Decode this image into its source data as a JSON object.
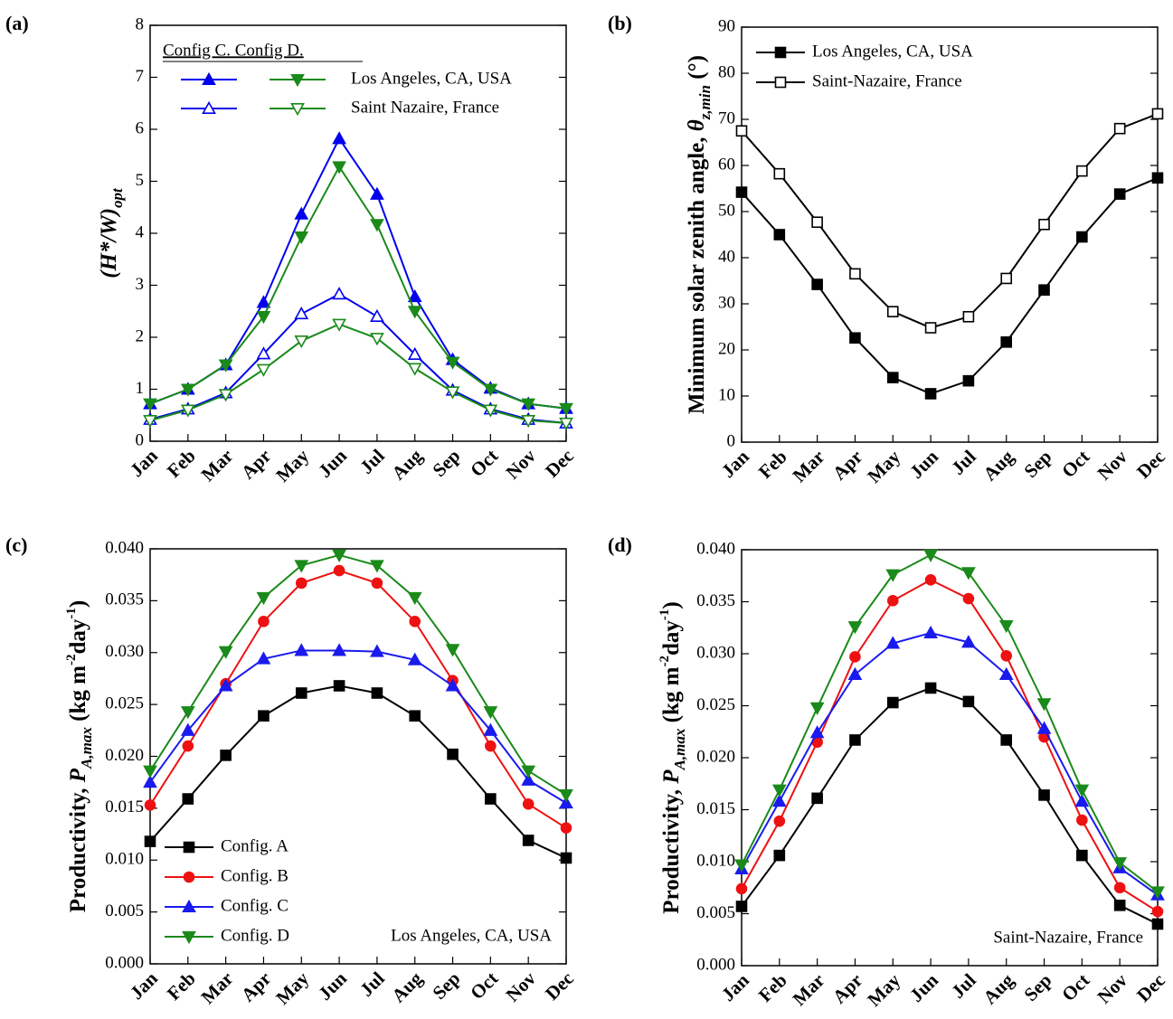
{
  "chart_data": [
    {
      "type": "line",
      "panel_label": "(a)",
      "ylabel": [
        {
          "text": "(H*/W)",
          "style": "italic"
        },
        {
          "text": "opt",
          "style": "italic",
          "shift": "sub"
        }
      ],
      "categories": [
        "Jan",
        "Feb",
        "Mar",
        "Apr",
        "May",
        "Jun",
        "Jul",
        "Aug",
        "Sep",
        "Oct",
        "Nov",
        "Dec"
      ],
      "ylim": [
        0,
        8
      ],
      "yticks": [
        0,
        1,
        2,
        3,
        4,
        5,
        6,
        7,
        8
      ],
      "legend_title": "Config C. Config D.",
      "groups": [
        {
          "name": "Los Angeles, CA, USA",
          "series": [
            {
              "color": "#0000ee",
              "marker": "triangle-up",
              "filled": true,
              "values": [
                0.72,
                1.0,
                1.47,
                2.67,
                4.37,
                5.82,
                4.75,
                2.78,
                1.57,
                1.02,
                0.72,
                0.63
              ]
            },
            {
              "color": "#1a8a1a",
              "marker": "triangle-down",
              "filled": true,
              "values": [
                0.72,
                1.0,
                1.47,
                2.4,
                3.93,
                5.28,
                4.17,
                2.5,
                1.52,
                1.0,
                0.72,
                0.63
              ]
            }
          ]
        },
        {
          "name": "Saint Nazaire, France",
          "series": [
            {
              "color": "#0000ee",
              "marker": "triangle-up",
              "filled": false,
              "values": [
                0.42,
                0.62,
                0.93,
                1.68,
                2.45,
                2.83,
                2.4,
                1.67,
                0.98,
                0.62,
                0.42,
                0.35
              ]
            },
            {
              "color": "#1a8a1a",
              "marker": "triangle-down",
              "filled": false,
              "values": [
                0.4,
                0.6,
                0.9,
                1.38,
                1.93,
                2.25,
                1.98,
                1.4,
                0.95,
                0.6,
                0.4,
                0.35
              ]
            }
          ]
        }
      ]
    },
    {
      "type": "line",
      "panel_label": "(b)",
      "ylabel": [
        {
          "text": "Minimum solar zenith angle, "
        },
        {
          "text": "θ",
          "style": "italic"
        },
        {
          "text": "z,min",
          "style": "italic",
          "shift": "sub"
        },
        {
          "text": " (°)"
        }
      ],
      "categories": [
        "Jan",
        "Feb",
        "Mar",
        "Apr",
        "May",
        "Jun",
        "Jul",
        "Aug",
        "Sep",
        "Oct",
        "Nov",
        "Dec"
      ],
      "ylim": [
        0,
        90
      ],
      "yticks": [
        0,
        10,
        20,
        30,
        40,
        50,
        60,
        70,
        80,
        90
      ],
      "legend": "upper left",
      "series": [
        {
          "name": "Los Angeles, CA, USA",
          "color": "#000000",
          "marker": "square",
          "filled": true,
          "values": [
            54.2,
            45,
            34.2,
            22.6,
            14,
            10.5,
            13.3,
            21.7,
            33,
            44.5,
            53.8,
            57.3
          ]
        },
        {
          "name": "Saint-Nazaire, France",
          "color": "#000000",
          "marker": "square",
          "filled": false,
          "values": [
            67.5,
            58.2,
            47.7,
            36.5,
            28.3,
            24.8,
            27.2,
            35.5,
            47.2,
            58.8,
            68,
            71.2
          ]
        }
      ]
    },
    {
      "type": "line",
      "panel_label": "(c)",
      "ylabel": [
        {
          "text": "Productivity, "
        },
        {
          "text": "P",
          "style": "italic"
        },
        {
          "text": "A,max",
          "style": "italic",
          "shift": "sub"
        },
        {
          "text": " (kg m"
        },
        {
          "text": "-2",
          "shift": "sup"
        },
        {
          "text": "day"
        },
        {
          "text": "-1",
          "shift": "sup"
        },
        {
          "text": ")"
        }
      ],
      "categories": [
        "Jan",
        "Feb",
        "Mar",
        "Apr",
        "May",
        "Jun",
        "Jul",
        "Aug",
        "Sep",
        "Oct",
        "Nov",
        "Dec"
      ],
      "ylim": [
        0,
        0.04
      ],
      "yticks": [
        {
          "value": 0,
          "label": "0.000"
        },
        {
          "value": 0.005,
          "label": "0.005"
        },
        {
          "value": 0.01,
          "label": "0.010"
        },
        {
          "value": 0.015,
          "label": "0.015"
        },
        {
          "value": 0.02,
          "label": "0.020"
        },
        {
          "value": 0.025,
          "label": "0.025"
        },
        {
          "value": 0.03,
          "label": "0.030"
        },
        {
          "value": 0.035,
          "label": "0.035"
        },
        {
          "value": 0.04,
          "label": "0.040"
        }
      ],
      "legend": "lower left",
      "annotation": "Los Angeles, CA, USA",
      "series": [
        {
          "name": "Config. A",
          "color": "#000000",
          "marker": "square",
          "filled": true,
          "values": [
            0.0118,
            0.0159,
            0.0201,
            0.0239,
            0.0261,
            0.0268,
            0.0261,
            0.0239,
            0.0202,
            0.0159,
            0.0119,
            0.0102
          ]
        },
        {
          "name": "Config. B",
          "color": "#ee1111",
          "marker": "circle",
          "filled": true,
          "values": [
            0.0153,
            0.021,
            0.027,
            0.033,
            0.0367,
            0.0379,
            0.0367,
            0.033,
            0.0273,
            0.021,
            0.0154,
            0.0131
          ]
        },
        {
          "name": "Config. C",
          "color": "#1a1aee",
          "marker": "triangle-up",
          "filled": true,
          "values": [
            0.0175,
            0.0225,
            0.0268,
            0.0294,
            0.0302,
            0.0302,
            0.0301,
            0.0293,
            0.0268,
            0.0225,
            0.0177,
            0.0155
          ]
        },
        {
          "name": "Config. D",
          "color": "#1a8a1a",
          "marker": "triangle-down",
          "filled": true,
          "values": [
            0.0186,
            0.0243,
            0.0301,
            0.0353,
            0.0384,
            0.0394,
            0.0384,
            0.0353,
            0.0303,
            0.0243,
            0.0186,
            0.0163
          ]
        }
      ]
    },
    {
      "type": "line",
      "panel_label": "(d)",
      "ylabel": [
        {
          "text": "Productivity, "
        },
        {
          "text": "P",
          "style": "italic"
        },
        {
          "text": "A,max",
          "style": "italic",
          "shift": "sub"
        },
        {
          "text": " (kg m"
        },
        {
          "text": "-2",
          "shift": "sup"
        },
        {
          "text": "day"
        },
        {
          "text": "-1",
          "shift": "sup"
        },
        {
          "text": ")"
        }
      ],
      "categories": [
        "Jan",
        "Feb",
        "Mar",
        "Apr",
        "May",
        "Jun",
        "Jul",
        "Aug",
        "Sep",
        "Oct",
        "Nov",
        "Dec"
      ],
      "ylim": [
        0,
        0.04
      ],
      "yticks": [
        {
          "value": 0,
          "label": "0.000"
        },
        {
          "value": 0.005,
          "label": "0.005"
        },
        {
          "value": 0.01,
          "label": "0.010"
        },
        {
          "value": 0.015,
          "label": "0.015"
        },
        {
          "value": 0.02,
          "label": "0.020"
        },
        {
          "value": 0.025,
          "label": "0.025"
        },
        {
          "value": 0.03,
          "label": "0.030"
        },
        {
          "value": 0.035,
          "label": "0.035"
        },
        {
          "value": 0.04,
          "label": "0.040"
        }
      ],
      "annotation": "Saint-Nazaire, France",
      "series": [
        {
          "color": "#000000",
          "marker": "square",
          "filled": true,
          "values": [
            0.0057,
            0.0106,
            0.0161,
            0.0217,
            0.0253,
            0.0267,
            0.0254,
            0.0217,
            0.0164,
            0.0106,
            0.0058,
            0.004
          ]
        },
        {
          "color": "#ee1111",
          "marker": "circle",
          "filled": true,
          "values": [
            0.0074,
            0.0139,
            0.0215,
            0.0297,
            0.0351,
            0.0371,
            0.0353,
            0.0298,
            0.022,
            0.014,
            0.0075,
            0.0052
          ]
        },
        {
          "color": "#1a1aee",
          "marker": "triangle-up",
          "filled": true,
          "values": [
            0.0093,
            0.0158,
            0.0224,
            0.028,
            0.031,
            0.032,
            0.0311,
            0.028,
            0.0228,
            0.0158,
            0.0094,
            0.0068
          ]
        },
        {
          "color": "#1a8a1a",
          "marker": "triangle-down",
          "filled": true,
          "values": [
            0.0097,
            0.0169,
            0.0248,
            0.0326,
            0.0376,
            0.0395,
            0.0378,
            0.0327,
            0.0252,
            0.0169,
            0.0099,
            0.0071
          ]
        }
      ]
    }
  ]
}
